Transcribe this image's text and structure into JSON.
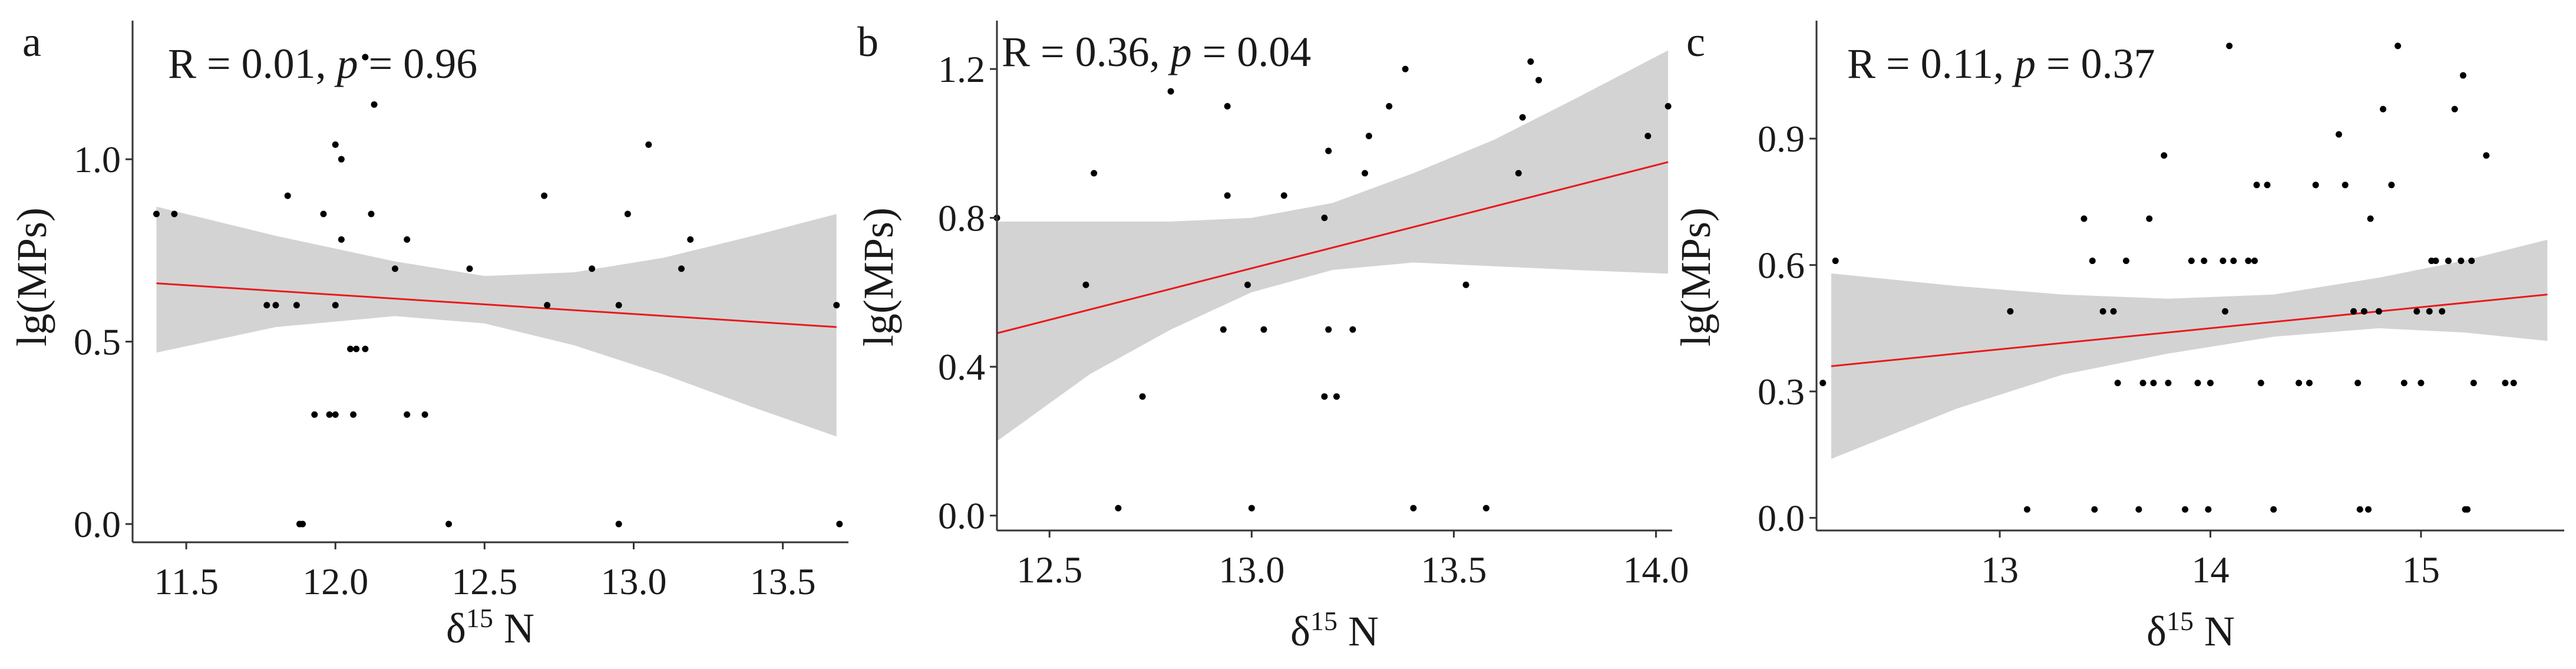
{
  "figure": {
    "background": "#ffffff",
    "band_color": "#d3d3d3",
    "fit_color": "#e8191c",
    "point_color": "#000000"
  },
  "chart_data": [
    {
      "panel": "a",
      "type": "scatter",
      "stat_r": "R = 0.01, ",
      "stat_p_label": "p",
      "stat_p_value": " = 0.96",
      "xlabel_base": "δ",
      "xlabel_sup": "15",
      "xlabel_rest": " N",
      "ylabel": "lg(MPs)",
      "xlim": [
        11.32,
        13.72
      ],
      "ylim": [
        -0.05,
        1.38
      ],
      "xticks": [
        11.5,
        12.0,
        12.5,
        13.0,
        13.5
      ],
      "xtick_labels": [
        "11.5",
        "12.0",
        "12.5",
        "13.0",
        "13.5"
      ],
      "yticks": [
        0.0,
        0.5,
        1.0
      ],
      "ytick_labels": [
        "0.0",
        "0.5",
        "1.0"
      ],
      "fit": {
        "x": [
          11.4,
          13.68
        ],
        "y": [
          0.66,
          0.54
        ]
      },
      "band": {
        "x": [
          11.4,
          11.8,
          12.2,
          12.5,
          12.8,
          13.1,
          13.4,
          13.68
        ],
        "lower": [
          0.47,
          0.54,
          0.57,
          0.55,
          0.49,
          0.41,
          0.32,
          0.24
        ],
        "upper": [
          0.87,
          0.79,
          0.72,
          0.68,
          0.69,
          0.73,
          0.79,
          0.85
        ]
      },
      "points": [
        [
          11.4,
          0.85
        ],
        [
          11.46,
          0.85
        ],
        [
          11.77,
          0.6
        ],
        [
          11.8,
          0.6
        ],
        [
          11.84,
          0.9
        ],
        [
          11.87,
          0.6
        ],
        [
          11.88,
          0.0
        ],
        [
          11.89,
          0.0
        ],
        [
          11.93,
          0.3
        ],
        [
          11.96,
          0.85
        ],
        [
          11.98,
          0.3
        ],
        [
          12.0,
          0.3
        ],
        [
          12.0,
          0.6
        ],
        [
          12.0,
          1.04
        ],
        [
          12.02,
          0.78
        ],
        [
          12.02,
          1.0
        ],
        [
          12.05,
          0.48
        ],
        [
          12.06,
          0.3
        ],
        [
          12.07,
          0.48
        ],
        [
          12.1,
          0.48
        ],
        [
          12.1,
          1.28
        ],
        [
          12.12,
          0.85
        ],
        [
          12.13,
          1.15
        ],
        [
          12.2,
          0.7
        ],
        [
          12.24,
          0.78
        ],
        [
          12.24,
          0.3
        ],
        [
          12.3,
          0.3
        ],
        [
          12.38,
          0.0
        ],
        [
          12.45,
          0.7
        ],
        [
          12.7,
          0.9
        ],
        [
          12.71,
          0.6
        ],
        [
          12.86,
          0.7
        ],
        [
          12.95,
          0.6
        ],
        [
          12.95,
          0.0
        ],
        [
          12.98,
          0.85
        ],
        [
          13.05,
          1.04
        ],
        [
          13.16,
          0.7
        ],
        [
          13.19,
          0.78
        ],
        [
          13.68,
          0.6
        ],
        [
          13.69,
          0.0
        ]
      ]
    },
    {
      "panel": "b",
      "type": "scatter",
      "stat_r": "R = 0.36, ",
      "stat_p_label": "p",
      "stat_p_value": " = 0.04",
      "xlabel_base": "δ",
      "xlabel_sup": "15",
      "xlabel_rest": " N",
      "ylabel": "lg(MPs)",
      "xlim": [
        12.37,
        14.04
      ],
      "ylim": [
        -0.04,
        1.33
      ],
      "xticks": [
        12.5,
        13.0,
        13.5,
        14.0
      ],
      "xtick_labels": [
        "12.5",
        "13.0",
        "13.5",
        "14.0"
      ],
      "yticks": [
        0.0,
        0.4,
        0.8,
        1.2
      ],
      "ytick_labels": [
        "0.0",
        "0.4",
        "0.8",
        "1.2"
      ],
      "fit": {
        "x": [
          12.37,
          14.03
        ],
        "y": [
          0.49,
          0.95
        ]
      },
      "band": {
        "x": [
          12.37,
          12.6,
          12.8,
          13.0,
          13.2,
          13.4,
          13.6,
          13.8,
          14.03
        ],
        "lower": [
          0.2,
          0.38,
          0.5,
          0.6,
          0.66,
          0.68,
          0.67,
          0.66,
          0.65
        ],
        "upper": [
          0.79,
          0.79,
          0.79,
          0.8,
          0.84,
          0.92,
          1.01,
          1.12,
          1.25
        ]
      },
      "points": [
        [
          12.37,
          0.8
        ],
        [
          12.59,
          0.62
        ],
        [
          12.61,
          0.92
        ],
        [
          12.67,
          0.02
        ],
        [
          12.73,
          0.32
        ],
        [
          12.8,
          1.14
        ],
        [
          12.93,
          0.5
        ],
        [
          12.94,
          0.86
        ],
        [
          12.94,
          1.1
        ],
        [
          12.99,
          0.62
        ],
        [
          13.0,
          0.02
        ],
        [
          13.03,
          0.5
        ],
        [
          13.08,
          0.86
        ],
        [
          13.18,
          0.32
        ],
        [
          13.18,
          0.8
        ],
        [
          13.19,
          0.98
        ],
        [
          13.19,
          0.5
        ],
        [
          13.21,
          0.32
        ],
        [
          13.25,
          0.5
        ],
        [
          13.28,
          0.92
        ],
        [
          13.29,
          1.02
        ],
        [
          13.34,
          1.1
        ],
        [
          13.38,
          1.2
        ],
        [
          13.4,
          0.02
        ],
        [
          13.53,
          0.62
        ],
        [
          13.58,
          0.02
        ],
        [
          13.66,
          0.92
        ],
        [
          13.67,
          1.07
        ],
        [
          13.69,
          1.22
        ],
        [
          13.71,
          1.17
        ],
        [
          13.98,
          1.02
        ],
        [
          14.03,
          1.1
        ]
      ]
    },
    {
      "panel": "c",
      "type": "scatter",
      "stat_r": "R = 0.11, ",
      "stat_p_label": "p",
      "stat_p_value": " = 0.37",
      "xlabel_base": "δ",
      "xlabel_sup": "15",
      "xlabel_rest": " N",
      "ylabel": "lg(MPs)",
      "xlim": [
        12.13,
        15.68
      ],
      "ylim": [
        -0.03,
        1.18
      ],
      "xticks": [
        13,
        14,
        15
      ],
      "xtick_labels": [
        "13",
        "14",
        "15"
      ],
      "yticks": [
        0.0,
        0.3,
        0.6,
        0.9
      ],
      "ytick_labels": [
        "0.0",
        "0.3",
        "0.6",
        "0.9"
      ],
      "fit": {
        "x": [
          12.2,
          15.6
        ],
        "y": [
          0.36,
          0.53
        ]
      },
      "band": {
        "x": [
          12.2,
          12.8,
          13.3,
          13.8,
          14.3,
          14.8,
          15.2,
          15.6
        ],
        "lower": [
          0.14,
          0.26,
          0.34,
          0.39,
          0.43,
          0.45,
          0.44,
          0.42
        ],
        "upper": [
          0.58,
          0.55,
          0.53,
          0.52,
          0.53,
          0.57,
          0.61,
          0.66
        ]
      },
      "points": [
        [
          12.16,
          0.32
        ],
        [
          12.22,
          0.61
        ],
        [
          13.05,
          0.49
        ],
        [
          13.13,
          0.02
        ],
        [
          13.4,
          0.71
        ],
        [
          13.44,
          0.61
        ],
        [
          13.45,
          0.02
        ],
        [
          13.49,
          0.49
        ],
        [
          13.54,
          0.49
        ],
        [
          13.56,
          0.32
        ],
        [
          13.6,
          0.61
        ],
        [
          13.66,
          0.02
        ],
        [
          13.68,
          0.32
        ],
        [
          13.71,
          0.71
        ],
        [
          13.73,
          0.32
        ],
        [
          13.78,
          0.86
        ],
        [
          13.8,
          0.32
        ],
        [
          13.88,
          0.02
        ],
        [
          13.91,
          0.61
        ],
        [
          13.94,
          0.32
        ],
        [
          13.97,
          0.61
        ],
        [
          13.99,
          0.02
        ],
        [
          14.0,
          0.32
        ],
        [
          14.06,
          0.61
        ],
        [
          14.07,
          0.49
        ],
        [
          14.09,
          1.12
        ],
        [
          14.11,
          0.61
        ],
        [
          14.18,
          0.61
        ],
        [
          14.21,
          0.61
        ],
        [
          14.22,
          0.79
        ],
        [
          14.24,
          0.32
        ],
        [
          14.27,
          0.79
        ],
        [
          14.3,
          0.02
        ],
        [
          14.42,
          0.32
        ],
        [
          14.47,
          0.32
        ],
        [
          14.5,
          0.79
        ],
        [
          14.61,
          0.91
        ],
        [
          14.64,
          0.79
        ],
        [
          14.68,
          0.49
        ],
        [
          14.7,
          0.32
        ],
        [
          14.71,
          0.02
        ],
        [
          14.73,
          0.49
        ],
        [
          14.75,
          0.02
        ],
        [
          14.76,
          0.71
        ],
        [
          14.8,
          0.49
        ],
        [
          14.82,
          0.97
        ],
        [
          14.86,
          0.79
        ],
        [
          14.89,
          1.12
        ],
        [
          14.92,
          0.32
        ],
        [
          14.98,
          0.49
        ],
        [
          15.0,
          0.32
        ],
        [
          15.04,
          0.49
        ],
        [
          15.05,
          0.61
        ],
        [
          15.07,
          0.61
        ],
        [
          15.1,
          0.49
        ],
        [
          15.13,
          0.61
        ],
        [
          15.16,
          0.97
        ],
        [
          15.19,
          0.61
        ],
        [
          15.2,
          1.05
        ],
        [
          15.21,
          0.02
        ],
        [
          15.22,
          0.02
        ],
        [
          15.24,
          0.61
        ],
        [
          15.25,
          0.32
        ],
        [
          15.31,
          0.86
        ],
        [
          15.4,
          0.32
        ],
        [
          15.44,
          0.32
        ]
      ]
    }
  ]
}
